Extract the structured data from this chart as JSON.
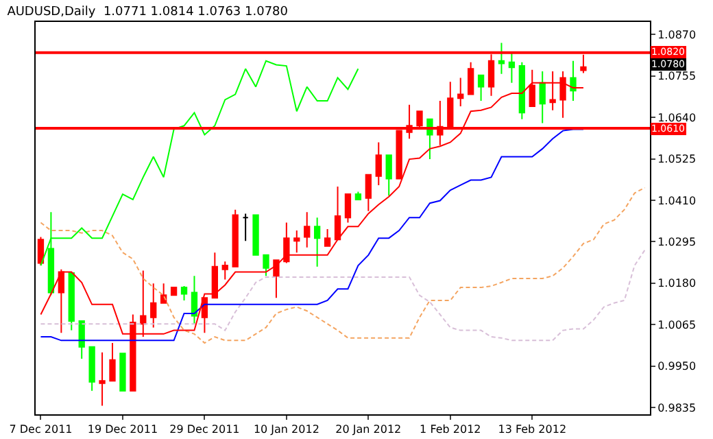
{
  "chart_data": {
    "type": "candlestick",
    "title": "AUDUSD,Daily  1.0771 1.0814 1.0763 1.0780",
    "categories": [
      "7 Dec 2011",
      null,
      null,
      null,
      null,
      null,
      null,
      null,
      "19 Dec 2011",
      null,
      null,
      null,
      null,
      null,
      null,
      null,
      "29 Dec 2011",
      null,
      null,
      null,
      null,
      null,
      null,
      null,
      "10 Jan 2012",
      null,
      null,
      null,
      null,
      null,
      null,
      null,
      "20 Jan 2012",
      null,
      null,
      null,
      null,
      null,
      null,
      null,
      "1 Feb 2012",
      null,
      null,
      null,
      null,
      null,
      null,
      null,
      "13 Feb 2012",
      null,
      null,
      null,
      null,
      null,
      null,
      null,
      null,
      null,
      null,
      null
    ],
    "ohlc": [
      [
        1.0236,
        1.0308,
        1.0229,
        1.0301
      ],
      [
        1.0276,
        1.0377,
        1.0147,
        1.0154
      ],
      [
        1.0154,
        1.0218,
        1.0042,
        1.0211
      ],
      [
        1.0208,
        1.0208,
        1.0049,
        1.0075
      ],
      [
        1.0075,
        1.0075,
        0.997,
        1.0003
      ],
      [
        1.0003,
        1.0003,
        0.9881,
        0.9906
      ],
      [
        0.9902,
        0.9988,
        0.984,
        0.9909
      ],
      [
        0.9909,
        1.0014,
        0.9909,
        0.9967
      ],
      [
        0.9985,
        0.9985,
        0.9881,
        0.9881
      ],
      [
        0.9881,
        1.0093,
        0.9881,
        1.0071
      ],
      [
        1.0067,
        1.0215,
        1.0031,
        1.0089
      ],
      [
        1.0085,
        1.0179,
        1.0057,
        1.0125
      ],
      [
        1.0125,
        1.0179,
        1.0125,
        1.0147
      ],
      [
        1.0147,
        1.0168,
        1.0147,
        1.0168
      ],
      [
        1.0168,
        1.0172,
        1.0132,
        1.015
      ],
      [
        1.0154,
        1.02,
        1.0067,
        1.0089
      ],
      [
        1.0085,
        1.0139,
        1.0042,
        1.0139
      ],
      [
        1.0139,
        1.0265,
        1.0139,
        1.0226
      ],
      [
        1.0218,
        1.024,
        1.019,
        1.0229
      ],
      [
        1.0226,
        1.0384,
        1.0226,
        1.0369
      ],
      [
        1.0362,
        1.0373,
        1.0297,
        1.0362
      ],
      [
        1.0369,
        1.0369,
        1.0258,
        1.0258
      ],
      [
        1.0258,
        1.0258,
        1.02,
        1.0222
      ],
      [
        1.02,
        1.0244,
        1.0139,
        1.0244
      ],
      [
        1.024,
        1.0348,
        1.0236,
        1.0305
      ],
      [
        1.0297,
        1.0326,
        1.0265,
        1.0305
      ],
      [
        1.0308,
        1.0377,
        1.0279,
        1.0337
      ],
      [
        1.0337,
        1.0362,
        1.0226,
        1.0305
      ],
      [
        1.0283,
        1.033,
        1.0283,
        1.0305
      ],
      [
        1.0301,
        1.0448,
        1.0301,
        1.0366
      ],
      [
        1.0362,
        1.0427,
        1.0348,
        1.0427
      ],
      [
        1.0427,
        1.0434,
        1.0412,
        1.0412
      ],
      [
        1.0416,
        1.0481,
        1.038,
        1.0481
      ],
      [
        1.0477,
        1.0571,
        1.0452,
        1.0535
      ],
      [
        1.0535,
        1.0535,
        1.0423,
        1.047
      ],
      [
        1.047,
        1.0603,
        1.047,
        1.0603
      ],
      [
        1.0599,
        1.0675,
        1.0581,
        1.0617
      ],
      [
        1.0617,
        1.0657,
        1.0607,
        1.0657
      ],
      [
        1.0635,
        1.0635,
        1.0524,
        1.0592
      ],
      [
        1.0592,
        1.0686,
        1.0563,
        1.0614
      ],
      [
        1.0614,
        1.0739,
        1.0614,
        1.0693
      ],
      [
        1.0693,
        1.075,
        1.0671,
        1.0704
      ],
      [
        1.0704,
        1.0793,
        1.0704,
        1.0775
      ],
      [
        1.0757,
        1.0757,
        1.0686,
        1.0725
      ],
      [
        1.0725,
        1.0815,
        1.07,
        1.0797
      ],
      [
        1.0797,
        1.0847,
        1.0761,
        1.079
      ],
      [
        1.0793,
        1.0822,
        1.0736,
        1.0779
      ],
      [
        1.0783,
        1.0793,
        1.0635,
        1.0653
      ],
      [
        1.0671,
        1.0772,
        1.0671,
        1.0729
      ],
      [
        1.0736,
        1.0768,
        1.0624,
        1.0678
      ],
      [
        1.0682,
        1.0768,
        1.066,
        1.0689
      ],
      [
        1.0689,
        1.0768,
        1.0639,
        1.075
      ],
      [
        1.075,
        1.0797,
        1.0686,
        1.0714
      ],
      [
        1.0771,
        1.0814,
        1.0763,
        1.078
      ],
      null,
      null,
      null,
      null,
      null,
      null
    ],
    "colors": [
      "#ff0000",
      "#00ff00",
      "#ff0000",
      "#00ff00",
      "#00ff00",
      "#00ff00",
      "#ff0000",
      "#ff0000",
      "#00ff00",
      "#ff0000",
      "#ff0000",
      "#ff0000",
      "#ff0000",
      "#ff0000",
      "#00ff00",
      "#00ff00",
      "#ff0000",
      "#ff0000",
      "#ff0000",
      "#ff0000",
      "#000000",
      "#00ff00",
      "#00ff00",
      "#ff0000",
      "#ff0000",
      "#ff0000",
      "#ff0000",
      "#00ff00",
      "#ff0000",
      "#ff0000",
      "#ff0000",
      "#00ff00",
      "#ff0000",
      "#ff0000",
      "#00ff00",
      "#ff0000",
      "#ff0000",
      "#ff0000",
      "#00ff00",
      "#ff0000",
      "#ff0000",
      "#ff0000",
      "#ff0000",
      "#00ff00",
      "#ff0000",
      "#00ff00",
      "#00ff00",
      "#00ff00",
      "#ff0000",
      "#00ff00",
      "#ff0000",
      "#ff0000",
      "#00ff00",
      "#ff0000",
      null,
      null,
      null,
      null,
      null,
      null
    ],
    "series": [
      {
        "type": "line",
        "color": "#f4a460",
        "line_style": "dashed",
        "values": [
          1.0348,
          1.0326,
          1.0326,
          1.0326,
          1.0319,
          1.0326,
          1.0326,
          1.0312,
          1.0265,
          1.0247,
          1.0193,
          1.0168,
          1.0146,
          1.0085,
          1.0049,
          1.0039,
          1.0014,
          1.0031,
          1.0021,
          1.0021,
          1.0021,
          1.0039,
          1.0057,
          1.0096,
          1.0107,
          1.0114,
          1.0103,
          1.0085,
          1.0067,
          1.0049,
          1.0028,
          1.0028,
          1.0028,
          1.0028,
          1.0028,
          1.0028,
          1.0028,
          1.0085,
          1.0132,
          1.0132,
          1.0132,
          1.0168,
          1.0168,
          1.0168,
          1.0172,
          1.0182,
          1.0193,
          1.0193,
          1.0193,
          1.0193,
          1.02,
          1.0222,
          1.0254,
          1.029,
          1.0301,
          1.0344,
          1.0355,
          1.0384,
          1.043,
          1.0445
        ]
      },
      {
        "type": "line",
        "color": "#d8bfd8",
        "line_style": "dashed",
        "values": [
          1.0067,
          1.0067,
          1.0067,
          1.0067,
          1.0067,
          1.0067,
          1.0067,
          1.0067,
          1.0067,
          1.0067,
          1.0067,
          1.0067,
          1.0067,
          1.0067,
          1.0067,
          1.0067,
          1.0067,
          1.0067,
          1.0049,
          1.01,
          1.0139,
          1.0182,
          1.0197,
          1.0197,
          1.0197,
          1.0197,
          1.0197,
          1.0197,
          1.0197,
          1.0197,
          1.0197,
          1.0197,
          1.0197,
          1.0197,
          1.0197,
          1.0197,
          1.0197,
          1.0146,
          1.0128,
          1.0093,
          1.0057,
          1.0049,
          1.0049,
          1.0049,
          1.0031,
          1.0028,
          1.0021,
          1.0021,
          1.0021,
          1.0021,
          1.0021,
          1.0049,
          1.0053,
          1.0053,
          1.0078,
          1.0114,
          1.0125,
          1.0132,
          1.0229,
          1.0272
        ]
      },
      {
        "type": "line",
        "color": "#00ff00",
        "line_style": "solid",
        "values": [
          1.0229,
          1.0305,
          1.0305,
          1.0305,
          1.0333,
          1.0305,
          1.0305,
          1.0366,
          1.0427,
          1.0412,
          1.0474,
          1.0531,
          1.0474,
          1.0607,
          1.0617,
          1.0653,
          1.0592,
          1.0617,
          1.0689,
          1.0704,
          1.0775,
          1.0725,
          1.0797,
          1.0786,
          1.0783,
          1.0657,
          1.0725,
          1.0686,
          1.0686,
          1.075,
          1.0718,
          1.0775,
          null,
          null,
          null,
          null,
          null,
          null,
          null,
          null,
          null,
          null,
          null,
          null,
          null,
          null,
          null,
          null,
          null,
          null,
          null,
          null,
          null,
          null,
          null,
          null,
          null,
          null,
          null,
          null
        ]
      },
      {
        "type": "line",
        "color": "#0000ff",
        "line_style": "solid",
        "values": [
          1.0031,
          1.0031,
          1.0021,
          1.0021,
          1.0021,
          1.0021,
          1.0021,
          1.0021,
          1.0021,
          1.0021,
          1.0021,
          1.0021,
          1.0021,
          1.0021,
          1.0096,
          1.0096,
          1.0121,
          1.0121,
          1.0121,
          1.0121,
          1.0121,
          1.0121,
          1.0121,
          1.0121,
          1.0121,
          1.0121,
          1.0121,
          1.0121,
          1.0132,
          1.0164,
          1.0164,
          1.0229,
          1.0258,
          1.0305,
          1.0305,
          1.0326,
          1.0362,
          1.0362,
          1.0402,
          1.0409,
          1.0438,
          1.0452,
          1.0466,
          1.0466,
          1.0474,
          1.0531,
          1.0531,
          1.0531,
          1.0531,
          1.0553,
          1.0581,
          1.0603,
          1.0607,
          1.0607,
          null,
          null,
          null,
          null,
          null,
          null
        ]
      },
      {
        "type": "line",
        "color": "#ff0000",
        "line_style": "solid",
        "values": [
          1.0093,
          1.015,
          1.0211,
          1.0211,
          1.0182,
          1.0121,
          1.0121,
          1.0121,
          1.0039,
          1.0039,
          1.0039,
          1.0039,
          1.0039,
          1.0049,
          1.0049,
          1.0049,
          1.015,
          1.015,
          1.0175,
          1.0211,
          1.0211,
          1.0211,
          1.0211,
          1.0229,
          1.0258,
          1.0258,
          1.0258,
          1.0258,
          1.0258,
          1.0301,
          1.0337,
          1.0337,
          1.0373,
          1.0398,
          1.042,
          1.0448,
          1.0524,
          1.0527,
          1.0553,
          1.056,
          1.0571,
          1.0596,
          1.0657,
          1.066,
          1.0668,
          1.0696,
          1.0707,
          1.0707,
          1.0736,
          1.0736,
          1.0736,
          1.0736,
          1.0722,
          1.0722,
          null,
          null,
          null,
          null,
          null,
          null
        ]
      }
    ],
    "ylim": [
      0.9816,
      1.0905
    ],
    "yticks": [
      {
        "value": 1.087,
        "label": "1.0870"
      },
      1.0755,
      {
        "value": 1.064,
        "label": "1.0640"
      },
      1.0525,
      {
        "value": 1.041,
        "label": "1.0410"
      },
      1.0295,
      {
        "value": 1.018,
        "label": "1.0180"
      },
      1.0065,
      {
        "value": 0.995,
        "label": "0.9950"
      },
      0.9835
    ],
    "ref_lines": [
      {
        "axis": "y",
        "value": 1.082,
        "label": "1.0820",
        "color": "#ff0000"
      },
      {
        "axis": "y",
        "value": 1.061,
        "label": "1.0610",
        "color": "#ff0000"
      }
    ],
    "annotations": [
      "1.0780"
    ]
  }
}
